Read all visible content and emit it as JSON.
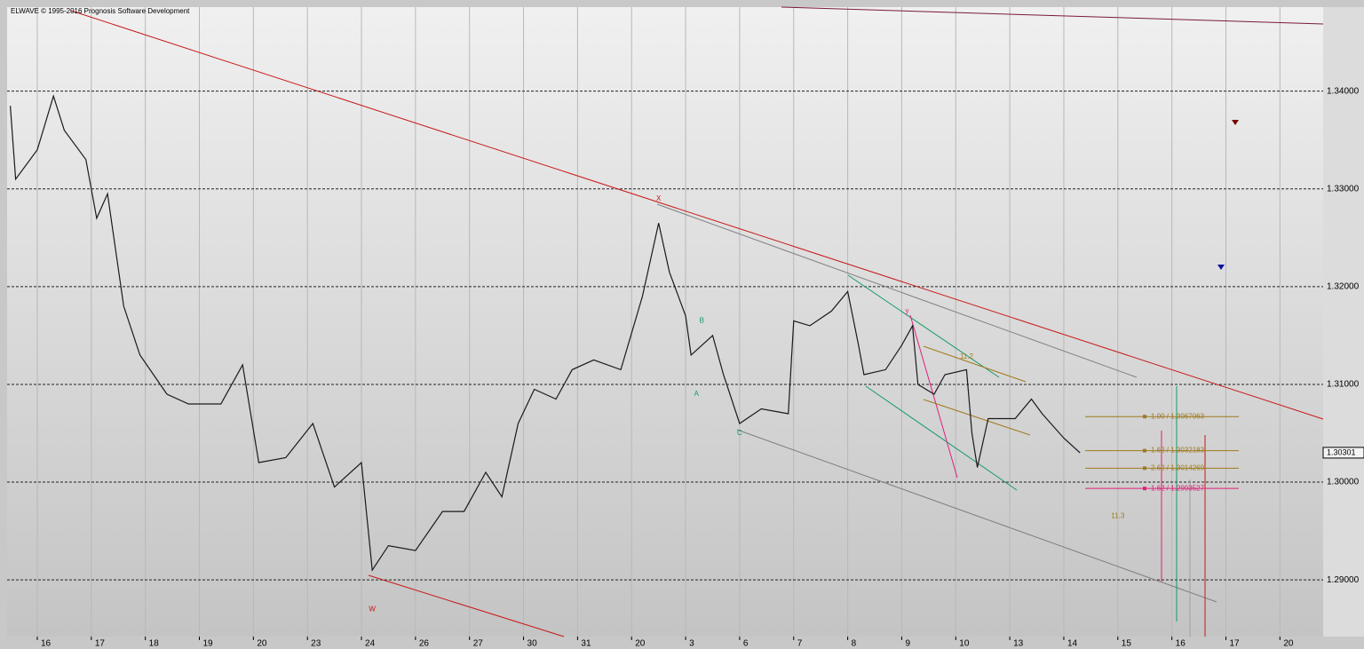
{
  "chart_data": {
    "type": "line",
    "title": "ELWAVE © 1995-2016 Prognosis Software Development",
    "x": [
      -0.5,
      -0.4,
      0.0,
      0.3,
      0.5,
      0.9,
      1.1,
      1.3,
      1.6,
      1.9,
      2.4,
      2.8,
      3.4,
      3.8,
      4.1,
      4.6,
      5.1,
      5.5,
      6.0,
      6.2,
      6.5,
      7.0,
      7.5,
      7.9,
      8.3,
      8.6,
      8.9,
      9.2,
      9.6,
      9.9,
      10.3,
      10.8,
      11.2,
      11.5,
      11.7,
      12.0,
      12.1,
      12.5,
      12.7,
      13.0,
      13.4,
      13.9,
      14.0,
      14.3,
      14.7,
      15.0,
      15.2,
      15.3,
      15.7,
      16.0,
      16.2,
      16.3,
      16.6,
      16.8,
      17.2,
      17.3,
      17.4,
      17.6,
      18.1,
      18.4,
      18.6,
      19.0,
      19.3
    ],
    "series": [
      {
        "color": "#1a1a1a",
        "values": [
          1.3385,
          1.331,
          1.334,
          1.3395,
          1.336,
          1.333,
          1.327,
          1.3295,
          1.318,
          1.313,
          1.309,
          1.308,
          1.308,
          1.312,
          1.302,
          1.3025,
          1.306,
          1.2995,
          1.302,
          1.291,
          1.2935,
          1.293,
          1.297,
          1.297,
          1.301,
          1.2985,
          1.306,
          1.3095,
          1.3085,
          1.3115,
          1.3125,
          1.3115,
          1.319,
          1.3265,
          1.3215,
          1.317,
          1.313,
          1.315,
          1.311,
          1.306,
          1.3075,
          1.307,
          1.3165,
          1.316,
          1.3175,
          1.3195,
          1.314,
          1.311,
          1.3115,
          1.314,
          1.316,
          1.31,
          1.309,
          1.311,
          1.3115,
          1.305,
          1.3015,
          1.3065,
          1.3065,
          1.3085,
          1.307,
          1.3045,
          1.303
        ]
      }
    ],
    "xlim": [
      -0.69,
      23.8
    ],
    "xticks": [
      {
        "value": 0,
        "label": "16"
      },
      {
        "value": 1,
        "label": "17"
      },
      {
        "value": 2,
        "label": "18"
      },
      {
        "value": 3,
        "label": "19"
      },
      {
        "value": 4,
        "label": "20"
      },
      {
        "value": 5,
        "label": "23"
      },
      {
        "value": 6,
        "label": "24"
      },
      {
        "value": 7,
        "label": "26"
      },
      {
        "value": 8,
        "label": "27"
      },
      {
        "value": 9,
        "label": "30"
      },
      {
        "value": 10,
        "label": "31"
      },
      {
        "value": 11,
        "label": "20"
      },
      {
        "value": 12,
        "label": "3"
      },
      {
        "value": 13,
        "label": "6"
      },
      {
        "value": 14,
        "label": "7"
      },
      {
        "value": 15,
        "label": "8"
      },
      {
        "value": 16,
        "label": "9"
      },
      {
        "value": 17,
        "label": "10"
      },
      {
        "value": 18,
        "label": "13"
      },
      {
        "value": 19,
        "label": "14"
      },
      {
        "value": 20,
        "label": "15"
      },
      {
        "value": 21,
        "label": "16"
      },
      {
        "value": 22,
        "label": "17"
      },
      {
        "value": 23,
        "label": "20"
      }
    ],
    "ylim": [
      1.2842,
      1.3486
    ],
    "yticks": [
      {
        "value": 1.29,
        "label": "1.29000"
      },
      {
        "value": 1.3,
        "label": "1.30000"
      },
      {
        "value": 1.31,
        "label": "1.31000"
      },
      {
        "value": 1.32,
        "label": "1.32000"
      },
      {
        "value": 1.33,
        "label": "1.33000"
      },
      {
        "value": 1.34,
        "label": "1.34000"
      }
    ],
    "last_price": 1.30301,
    "fib_levels": [
      {
        "label": "1.00 / 1.3067063",
        "value": 1.3067063,
        "color": "#a07a1e"
      },
      {
        "label": "1.62 / 1.3032183",
        "value": 1.3032183,
        "color": "#a07a1e"
      },
      {
        "label": "2.62 / 1.3014269",
        "value": 1.3014269,
        "color": "#a07a1e"
      },
      {
        "label": "1.62 / 1.2993527",
        "value": 1.2993527,
        "color": "#e0207a"
      }
    ],
    "annotations": [
      {
        "text": "W",
        "x": 6.2,
        "y": 1.287,
        "color": "#cc1111"
      },
      {
        "text": "X",
        "x": 11.5,
        "y": 1.329,
        "color": "#cc1111"
      },
      {
        "text": "A",
        "x": 12.2,
        "y": 1.309,
        "color": "#129a6a"
      },
      {
        "text": "B",
        "x": 12.3,
        "y": 1.3165,
        "color": "#129a6a"
      },
      {
        "text": "C",
        "x": 13.0,
        "y": 1.305,
        "color": "#129a6a"
      },
      {
        "text": "y",
        "x": 16.1,
        "y": 1.3175,
        "color": "#e0207a"
      },
      {
        "text": "11.2",
        "x": 17.2,
        "y": 1.3128,
        "color": "#a07a1e"
      },
      {
        "text": "11.3",
        "x": 20.0,
        "y": 1.2965,
        "color": "#a07a1e"
      }
    ]
  }
}
